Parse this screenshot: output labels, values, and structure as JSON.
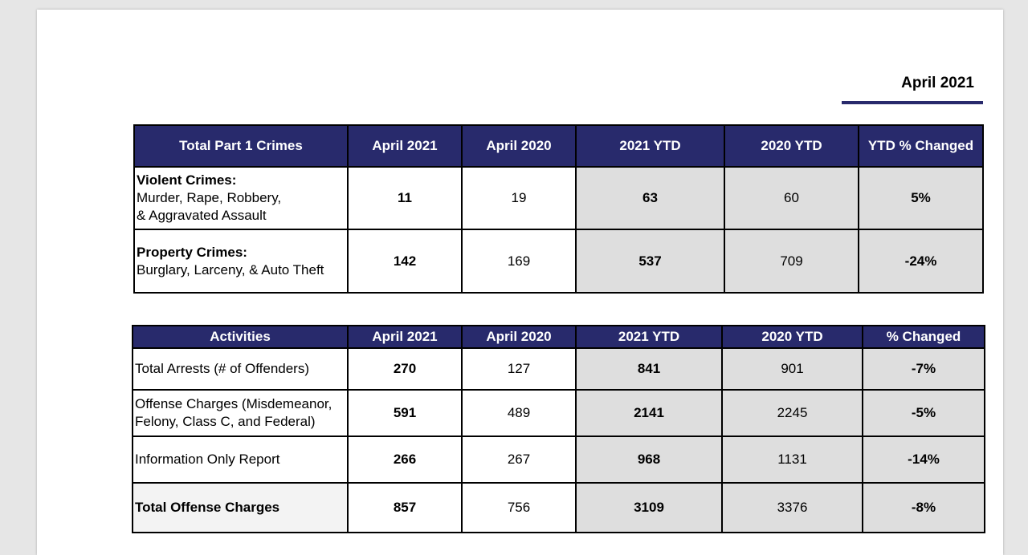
{
  "report": {
    "date_label": "April 2021"
  },
  "crimes_table": {
    "headers": [
      "Total Part 1 Crimes",
      "April 2021",
      "April 2020",
      "2021 YTD",
      "2020 YTD",
      "YTD % Changed"
    ],
    "rows": [
      {
        "title": "Violent Crimes:",
        "desc_line1": "Murder, Rape, Robbery,",
        "desc_line2": "& Aggravated Assault",
        "values": [
          "11",
          "19",
          "63",
          "60",
          "5%"
        ]
      },
      {
        "title": "Property Crimes:",
        "desc_line1": "Burglary, Larceny,  & Auto Theft",
        "values": [
          "142",
          "169",
          "537",
          "709",
          "-24%"
        ]
      }
    ]
  },
  "activities_table": {
    "headers": [
      "Activities",
      "April 2021",
      "April 2020",
      "2021 YTD",
      "2020 YTD",
      "% Changed"
    ],
    "rows": [
      {
        "label": "Total Arrests (# of Offenders)",
        "values": [
          "270",
          "127",
          "841",
          "901",
          "-7%"
        ]
      },
      {
        "label_line1": "Offense Charges (Misdemeanor,",
        "label_line2": "Felony, Class C, and Federal)",
        "values": [
          "591",
          "489",
          "2141",
          "2245",
          "-5%"
        ]
      },
      {
        "label": "Information Only Report",
        "values": [
          "266",
          "267",
          "968",
          "1131",
          "-14%"
        ]
      },
      {
        "label": "Total Offense Charges",
        "values": [
          "857",
          "756",
          "3109",
          "3376",
          "-8%"
        ]
      }
    ]
  }
}
